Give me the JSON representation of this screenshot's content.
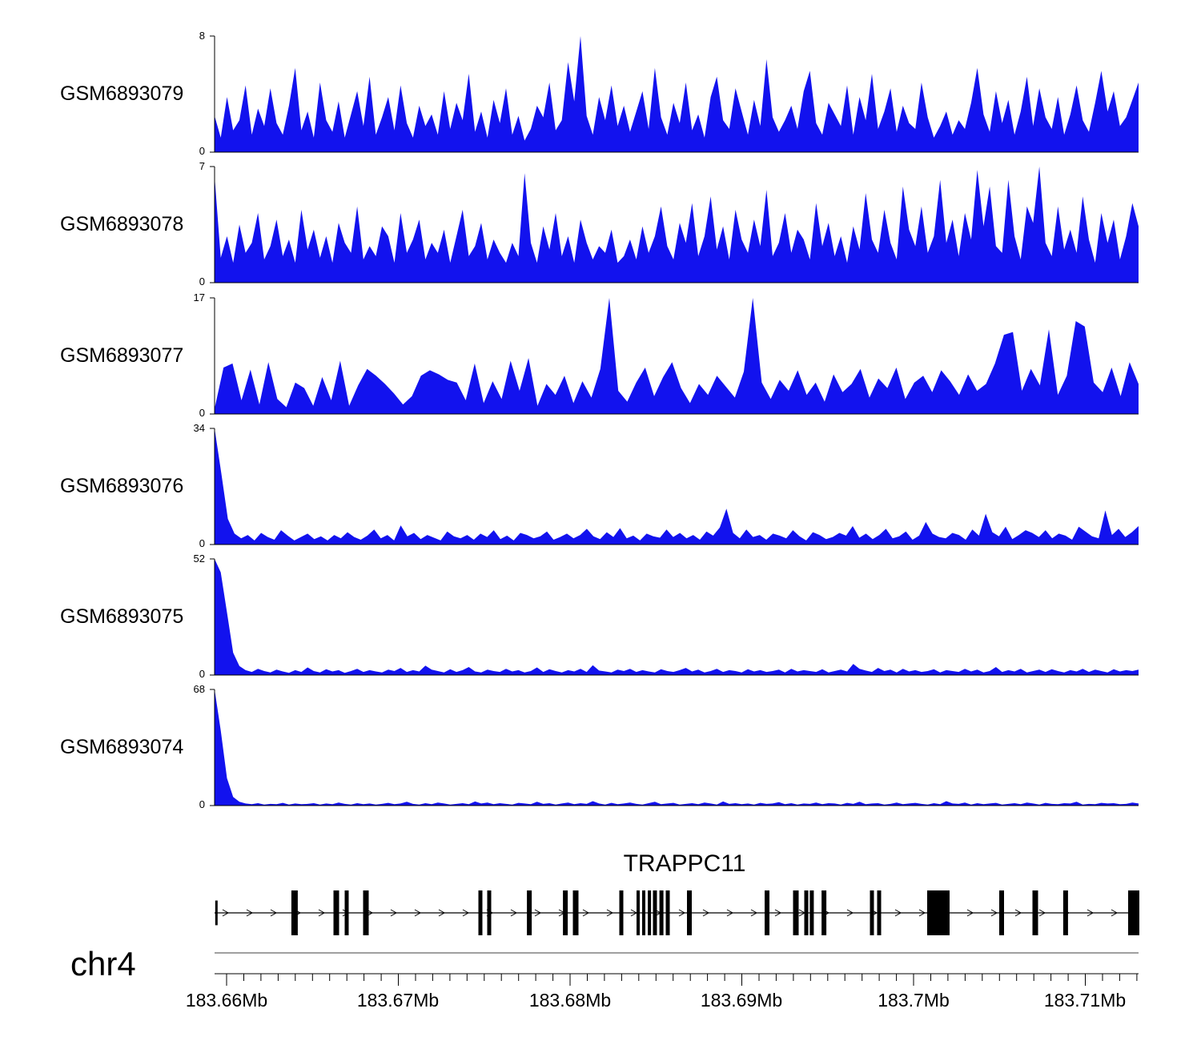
{
  "chart_data": {
    "type": "area",
    "description": "Genome browser coverage tracks over TRAPPC11 locus",
    "chromosome_label": "chr4",
    "signal_color": "#1212ee",
    "y_zero_label": "0",
    "x_axis": {
      "unit": "Mb",
      "range_mb": [
        183.6593,
        183.7131
      ],
      "minor_tick_step_mb": 0.001,
      "major_ticks": [
        {
          "mb": 183.66,
          "label": "183.66Mb"
        },
        {
          "mb": 183.67,
          "label": "183.67Mb"
        },
        {
          "mb": 183.68,
          "label": "183.68Mb"
        },
        {
          "mb": 183.69,
          "label": "183.69Mb"
        },
        {
          "mb": 183.7,
          "label": "183.7Mb"
        },
        {
          "mb": 183.71,
          "label": "183.71Mb"
        }
      ]
    },
    "gene_track": {
      "gene_name": "TRAPPC11",
      "strand_direction": "right",
      "exons": [
        {
          "x": 0.002,
          "w": 3,
          "h": 0.55
        },
        {
          "x": 0.0866,
          "w": 8
        },
        {
          "x": 0.1317,
          "w": 7
        },
        {
          "x": 0.143,
          "w": 5
        },
        {
          "x": 0.1638,
          "w": 7
        },
        {
          "x": 0.2877,
          "w": 5
        },
        {
          "x": 0.2972,
          "w": 5
        },
        {
          "x": 0.3406,
          "w": 6
        },
        {
          "x": 0.3796,
          "w": 6
        },
        {
          "x": 0.3908,
          "w": 7
        },
        {
          "x": 0.4402,
          "w": 5
        },
        {
          "x": 0.4584,
          "w": 4
        },
        {
          "x": 0.4645,
          "w": 4
        },
        {
          "x": 0.4706,
          "w": 4
        },
        {
          "x": 0.4766,
          "w": 5
        },
        {
          "x": 0.4836,
          "w": 5
        },
        {
          "x": 0.4905,
          "w": 5
        },
        {
          "x": 0.5139,
          "w": 6
        },
        {
          "x": 0.5979,
          "w": 6
        },
        {
          "x": 0.6291,
          "w": 7
        },
        {
          "x": 0.6404,
          "w": 5
        },
        {
          "x": 0.6464,
          "w": 5
        },
        {
          "x": 0.6595,
          "w": 6
        },
        {
          "x": 0.7114,
          "w": 5
        },
        {
          "x": 0.7192,
          "w": 5
        },
        {
          "x": 0.7834,
          "w": 28
        },
        {
          "x": 0.8518,
          "w": 6
        },
        {
          "x": 0.8882,
          "w": 7
        },
        {
          "x": 0.9211,
          "w": 6
        },
        {
          "x": 0.9948,
          "w": 14
        }
      ]
    },
    "tracks": [
      {
        "name": "GSM6893079",
        "ymax": 8,
        "values": [
          2.5,
          1,
          3.8,
          1.5,
          2.2,
          4.6,
          1.2,
          3,
          1.8,
          4.4,
          2,
          1.2,
          3.2,
          5.8,
          1.5,
          2.8,
          1,
          4.8,
          2.2,
          1.4,
          3.5,
          1,
          2.6,
          4.2,
          1.8,
          5.2,
          1.2,
          2.4,
          3.8,
          1.5,
          4.6,
          2,
          1,
          3.2,
          1.8,
          2.6,
          1.2,
          4.2,
          1.6,
          3.4,
          2.2,
          5.4,
          1.4,
          2.8,
          1,
          3.6,
          2,
          4.4,
          1.2,
          2.5,
          0.8,
          1.6,
          3.2,
          2.4,
          4.8,
          1.5,
          2.2,
          6.2,
          3.5,
          8,
          2.5,
          1.2,
          3.8,
          2.2,
          4.6,
          1.8,
          3.2,
          1.4,
          2.8,
          4.2,
          1.6,
          5.8,
          2.4,
          1.2,
          3.4,
          2,
          4.8,
          1.5,
          2.6,
          1,
          3.8,
          5.2,
          2.2,
          1.6,
          4.4,
          2.8,
          1.2,
          3.6,
          1.8,
          6.4,
          2.4,
          1.4,
          2.2,
          3.2,
          1.6,
          4.2,
          5.6,
          2,
          1.2,
          3.4,
          2.6,
          1.8,
          4.6,
          1.2,
          3.8,
          2.2,
          5.4,
          1.6,
          2.8,
          4.4,
          1.4,
          3.2,
          2,
          1.6,
          4.8,
          2.4,
          1,
          1.8,
          2.8,
          1.2,
          2.2,
          1.6,
          3.4,
          5.8,
          2.6,
          1.4,
          4.2,
          2,
          3.6,
          1.2,
          2.8,
          5.2,
          1.8,
          4.4,
          2.4,
          1.6,
          3.8,
          1.2,
          2.6,
          4.6,
          2.2,
          1.4,
          3.4,
          5.6,
          2.8,
          4.2,
          1.8,
          2.4,
          3.6,
          4.8
        ]
      },
      {
        "name": "GSM6893078",
        "ymax": 7,
        "values": [
          6.4,
          1.5,
          2.8,
          1.2,
          3.5,
          1.8,
          2.4,
          4.2,
          1.4,
          2.2,
          3.8,
          1.6,
          2.6,
          1.2,
          4.4,
          2,
          3.2,
          1.5,
          2.8,
          1.2,
          3.6,
          2.4,
          1.8,
          4.6,
          1.4,
          2.2,
          1.6,
          3.4,
          2.8,
          1.2,
          4.2,
          1.8,
          2.6,
          3.8,
          1.4,
          2.4,
          1.8,
          3.2,
          1.2,
          2.8,
          4.4,
          1.6,
          2.2,
          3.6,
          1.4,
          2.6,
          1.8,
          1.2,
          2.4,
          1.6,
          6.6,
          2.4,
          1.2,
          3.4,
          2,
          4.2,
          1.6,
          2.8,
          1.2,
          3.8,
          2.4,
          1.4,
          2.2,
          1.8,
          3.2,
          1.2,
          1.6,
          2.6,
          1.4,
          3.4,
          1.8,
          2.8,
          4.6,
          2.2,
          1.4,
          3.6,
          2.4,
          4.8,
          1.6,
          2.8,
          5.2,
          2,
          3.4,
          1.4,
          4.4,
          2.6,
          1.8,
          3.8,
          2.2,
          5.6,
          1.6,
          2.4,
          4.2,
          1.8,
          3.2,
          2.6,
          1.4,
          4.8,
          2.2,
          3.6,
          1.6,
          2.8,
          1.2,
          3.4,
          2,
          5.4,
          2.6,
          1.8,
          4.4,
          2.4,
          1.4,
          5.8,
          3.2,
          2.2,
          4.6,
          1.8,
          2.8,
          6.2,
          2.4,
          3.8,
          1.6,
          4.2,
          2.6,
          6.8,
          3.4,
          5.8,
          2.2,
          1.8,
          6.2,
          2.8,
          1.4,
          4.6,
          3.6,
          7,
          2.4,
          1.6,
          4.6,
          2,
          3.2,
          1.8,
          5.2,
          2.6,
          1.2,
          4.2,
          2.4,
          3.8,
          1.4,
          2.8,
          4.8,
          3.4
        ]
      },
      {
        "name": "GSM6893077",
        "ymax": 17,
        "values": [
          0.8,
          6.8,
          7.4,
          2,
          6.5,
          1.4,
          7.6,
          2.2,
          1,
          4.6,
          3.8,
          1.2,
          5.4,
          2,
          7.8,
          1.2,
          4.2,
          6.6,
          5.6,
          4.4,
          3,
          1.4,
          2.6,
          5.6,
          6.4,
          5.8,
          5,
          4.6,
          2,
          7.4,
          1.6,
          4.8,
          2.2,
          7.8,
          3.4,
          8.2,
          1.2,
          4.4,
          2.8,
          5.6,
          1.6,
          4.8,
          2.4,
          6.6,
          17,
          3.4,
          1.8,
          4.6,
          6.8,
          2.6,
          5.4,
          7.6,
          3.8,
          1.6,
          4.4,
          2.8,
          5.6,
          4,
          2.4,
          6.2,
          17,
          4.6,
          2.2,
          5,
          3.4,
          6.4,
          2.8,
          4.6,
          1.8,
          5.8,
          3.2,
          4.4,
          6.6,
          2.4,
          5.2,
          3.8,
          6.8,
          2.2,
          4.6,
          5.6,
          3.2,
          6.4,
          4.8,
          2.8,
          5.8,
          3.4,
          4.4,
          7.4,
          11.6,
          12,
          3.4,
          6.6,
          4.2,
          12.4,
          2.8,
          5.6,
          13.6,
          12.8,
          4.6,
          3.2,
          6.8,
          2.6,
          7.6,
          4.4
        ]
      },
      {
        "name": "GSM6893076",
        "ymax": 34,
        "values": [
          34,
          21,
          7.5,
          3.2,
          1.8,
          2.8,
          1.2,
          3.4,
          2.2,
          1.4,
          4.2,
          2.6,
          1.2,
          2.2,
          3.2,
          1.6,
          2.4,
          1.2,
          2.8,
          1.8,
          3.6,
          2.2,
          1.4,
          2.6,
          4.4,
          1.8,
          2.8,
          1.2,
          5.6,
          2.4,
          3.4,
          1.6,
          2.8,
          2,
          1.2,
          3.8,
          2.4,
          1.8,
          2.8,
          1.4,
          3.2,
          2.2,
          4.2,
          1.6,
          2.6,
          1.2,
          3.4,
          2.8,
          1.8,
          2.4,
          3.8,
          1.4,
          2.2,
          3.2,
          1.8,
          2.8,
          4.6,
          2.4,
          1.6,
          3.6,
          2.2,
          4.8,
          1.8,
          2.6,
          1.2,
          3.2,
          2.4,
          2,
          4.4,
          2.2,
          3.4,
          1.8,
          2.8,
          1.4,
          3.8,
          2.6,
          5,
          10.5,
          3.4,
          1.8,
          4.4,
          2.2,
          2.8,
          1.4,
          3.2,
          2.6,
          1.8,
          4.2,
          2.4,
          1.2,
          3.6,
          2.8,
          1.6,
          2.2,
          3.4,
          2.6,
          5.4,
          2,
          3.2,
          1.6,
          2.8,
          4.6,
          1.8,
          2.4,
          3.8,
          1.4,
          2.6,
          6.6,
          3.2,
          2.2,
          1.8,
          3.4,
          2.8,
          1.4,
          4.4,
          2.6,
          9,
          3.6,
          2.4,
          5.2,
          1.6,
          2.8,
          4.2,
          3.4,
          2.2,
          4.2,
          1.8,
          3.2,
          2.6,
          1.4,
          5.2,
          3.8,
          2.4,
          1.8,
          10,
          2.8,
          4.6,
          2.2,
          3.6,
          5.4
        ]
      },
      {
        "name": "GSM6893075",
        "ymax": 52,
        "values": [
          52,
          46,
          28,
          10,
          4,
          2.2,
          1.4,
          2.8,
          1.8,
          1.2,
          2.4,
          1.6,
          1,
          2.2,
          1.4,
          3.4,
          1.8,
          1.2,
          2.6,
          1.6,
          2.2,
          1,
          1.8,
          2.8,
          1.4,
          2.2,
          1.6,
          1.2,
          2.4,
          1.8,
          3.2,
          1.4,
          2.2,
          1.6,
          4.2,
          2.4,
          1.8,
          1.2,
          2.6,
          1.4,
          2.2,
          3.6,
          1.6,
          1.2,
          2.4,
          1.8,
          1.4,
          2.8,
          1.6,
          2.2,
          1.2,
          1.8,
          3.4,
          1.4,
          2.6,
          1.8,
          1.2,
          2.2,
          1.6,
          2.8,
          1.4,
          4.4,
          2,
          1.6,
          1.2,
          2.4,
          1.8,
          2.8,
          1.4,
          2.2,
          1.6,
          1.2,
          2.6,
          1.8,
          1.4,
          2.2,
          3.2,
          1.6,
          2.4,
          1.2,
          1.8,
          2.8,
          1.4,
          2.2,
          1.8,
          1.2,
          2.6,
          1.6,
          2.2,
          1.4,
          1.8,
          2.4,
          1.2,
          2.8,
          1.6,
          2.2,
          1.8,
          1.4,
          2.6,
          1.2,
          1.8,
          2.4,
          1.6,
          5,
          2.8,
          2,
          1.4,
          3.2,
          1.8,
          2.4,
          1.2,
          2.8,
          1.6,
          2.2,
          1.4,
          1.8,
          2.6,
          1.2,
          2.2,
          1.8,
          1.4,
          2.8,
          1.6,
          2.4,
          1.2,
          1.8,
          3.6,
          1.4,
          2.2,
          1.6,
          2.8,
          1.2,
          1.8,
          2.4,
          1.4,
          2.6,
          1.8,
          1.2,
          2.2,
          1.6,
          2.8,
          1.4,
          2.4,
          1.8,
          1.2,
          2.6,
          1.6,
          2.2,
          1.8,
          2.4
        ]
      },
      {
        "name": "GSM6893074",
        "ymax": 68,
        "values": [
          68,
          44,
          16,
          5,
          2.2,
          1.2,
          0.8,
          1.4,
          0.6,
          1,
          0.8,
          1.6,
          0.6,
          1.2,
          0.8,
          1,
          1.4,
          0.6,
          1.2,
          0.8,
          1.8,
          1,
          0.6,
          1.4,
          0.8,
          1.2,
          0.6,
          1,
          1.6,
          0.8,
          1.2,
          2.2,
          1,
          0.6,
          1.4,
          0.8,
          1.8,
          1.2,
          0.6,
          1,
          1.4,
          0.8,
          2.4,
          1.2,
          1.8,
          0.8,
          1.4,
          1,
          0.6,
          1.6,
          1.2,
          0.8,
          2.2,
          1,
          1.4,
          0.6,
          1.2,
          1.8,
          0.8,
          1.4,
          1,
          2.6,
          1.2,
          0.6,
          1.6,
          0.8,
          1.2,
          1.8,
          1,
          0.6,
          1.4,
          2.2,
          0.8,
          1.2,
          1.6,
          0.6,
          1,
          1.4,
          0.8,
          1.8,
          1.2,
          0.6,
          2.4,
          1,
          1.4,
          0.8,
          1.2,
          0.6,
          1.6,
          1,
          1.2,
          2,
          0.8,
          1.4,
          0.6,
          1.2,
          1,
          1.8,
          0.8,
          1.4,
          1.2,
          0.6,
          1.6,
          1,
          2.2,
          0.8,
          1.2,
          1.4,
          0.6,
          1,
          1.8,
          0.8,
          1.2,
          1.6,
          1,
          0.6,
          1.4,
          0.8,
          2.6,
          1.2,
          1,
          1.8,
          0.6,
          1.4,
          0.8,
          1.2,
          1.6,
          0.6,
          1,
          1.4,
          0.8,
          1.8,
          1.2,
          0.6,
          1.6,
          1,
          0.8,
          1.4,
          1.2,
          2.2,
          0.6,
          1,
          0.8,
          1.6,
          1.2,
          1.4,
          0.8,
          1,
          1.8,
          1.2
        ]
      }
    ]
  }
}
